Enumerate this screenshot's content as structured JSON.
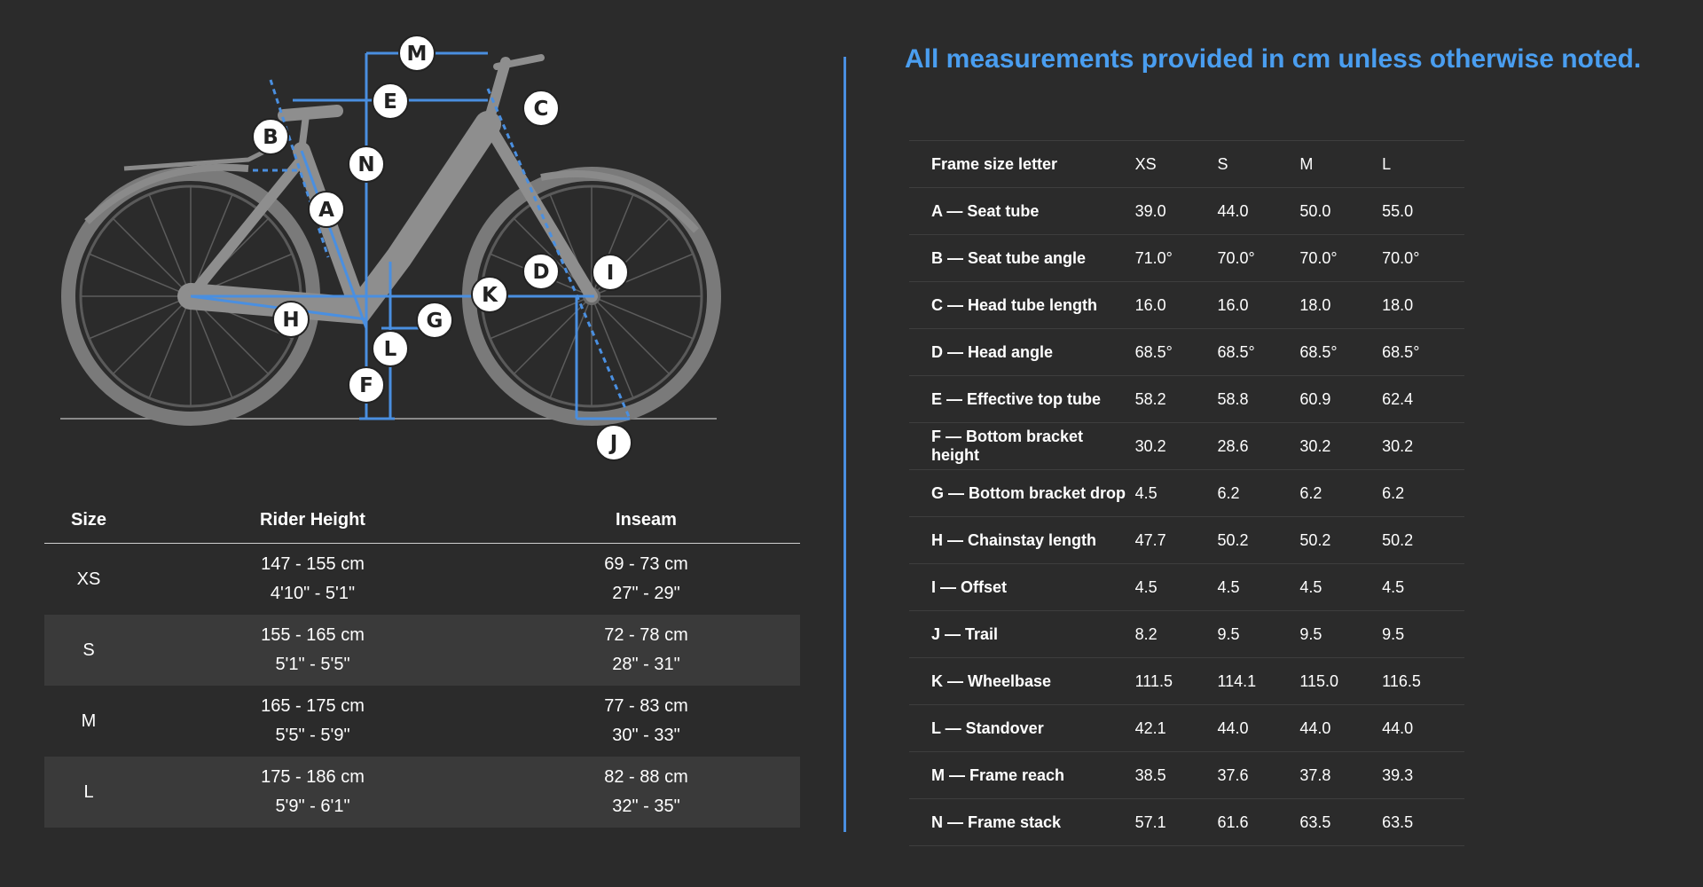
{
  "diagram": {
    "markers": [
      "M",
      "E",
      "C",
      "B",
      "N",
      "A",
      "D",
      "I",
      "K",
      "H",
      "G",
      "L",
      "F",
      "J"
    ],
    "accent_color": "#4a8fe0"
  },
  "size_table": {
    "headers": {
      "size": "Size",
      "height": "Rider Height",
      "inseam": "Inseam"
    },
    "rows": [
      {
        "size": "XS",
        "height_cm": "147 - 155 cm",
        "height_ft": "4'10\" - 5'1\"",
        "inseam_cm": "69 - 73 cm",
        "inseam_in": "27\" - 29\""
      },
      {
        "size": "S",
        "height_cm": "155 - 165 cm",
        "height_ft": "5'1\" - 5'5\"",
        "inseam_cm": "72 - 78 cm",
        "inseam_in": "28\" - 31\""
      },
      {
        "size": "M",
        "height_cm": "165 - 175 cm",
        "height_ft": "5'5\" - 5'9\"",
        "inseam_cm": "77 - 83 cm",
        "inseam_in": "30\" - 33\""
      },
      {
        "size": "L",
        "height_cm": "175 - 186 cm",
        "height_ft": "5'9\" - 6'1\"",
        "inseam_cm": "82 - 88 cm",
        "inseam_in": "32\" - 35\""
      }
    ]
  },
  "notice": "All measurements provided in cm unless otherwise noted.",
  "geometry": {
    "header": {
      "label": "Frame size letter",
      "sizes": [
        "XS",
        "S",
        "M",
        "L"
      ]
    },
    "rows": [
      {
        "label": "A — Seat tube",
        "values": [
          "39.0",
          "44.0",
          "50.0",
          "55.0"
        ]
      },
      {
        "label": "B — Seat tube angle",
        "values": [
          "71.0°",
          "70.0°",
          "70.0°",
          "70.0°"
        ]
      },
      {
        "label": "C — Head tube length",
        "values": [
          "16.0",
          "16.0",
          "18.0",
          "18.0"
        ]
      },
      {
        "label": "D — Head angle",
        "values": [
          "68.5°",
          "68.5°",
          "68.5°",
          "68.5°"
        ]
      },
      {
        "label": "E — Effective top tube",
        "values": [
          "58.2",
          "58.8",
          "60.9",
          "62.4"
        ]
      },
      {
        "label": "F — Bottom bracket height",
        "values": [
          "30.2",
          "28.6",
          "30.2",
          "30.2"
        ]
      },
      {
        "label": "G — Bottom bracket drop",
        "values": [
          "4.5",
          "6.2",
          "6.2",
          "6.2"
        ]
      },
      {
        "label": "H — Chainstay length",
        "values": [
          "47.7",
          "50.2",
          "50.2",
          "50.2"
        ]
      },
      {
        "label": "I — Offset",
        "values": [
          "4.5",
          "4.5",
          "4.5",
          "4.5"
        ]
      },
      {
        "label": "J — Trail",
        "values": [
          "8.2",
          "9.5",
          "9.5",
          "9.5"
        ]
      },
      {
        "label": "K — Wheelbase",
        "values": [
          "111.5",
          "114.1",
          "115.0",
          "116.5"
        ]
      },
      {
        "label": "L — Standover",
        "values": [
          "42.1",
          "44.0",
          "44.0",
          "44.0"
        ]
      },
      {
        "label": "M — Frame reach",
        "values": [
          "38.5",
          "37.6",
          "37.8",
          "39.3"
        ]
      },
      {
        "label": "N — Frame stack",
        "values": [
          "57.1",
          "61.6",
          "63.5",
          "63.5"
        ]
      }
    ]
  }
}
